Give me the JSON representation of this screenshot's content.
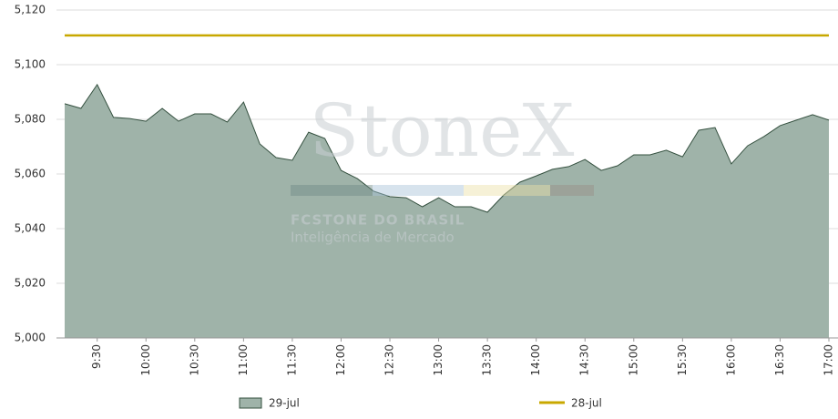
{
  "chart_data": {
    "type": "line",
    "watermark": {
      "brand": "StoneX",
      "line1": "FCSTONE DO BRASIL",
      "line2": "Inteligência de Mercado"
    },
    "categories": [
      null,
      null,
      "9:30",
      null,
      null,
      "10:00",
      null,
      null,
      "10:30",
      null,
      null,
      "11:00",
      null,
      null,
      "11:30",
      null,
      null,
      "12:00",
      null,
      null,
      "12:30",
      null,
      null,
      "13:00",
      null,
      null,
      "13:30",
      null,
      null,
      "14:00",
      null,
      null,
      "14:30",
      null,
      null,
      "15:00",
      null,
      null,
      "15:30",
      null,
      null,
      "16:00",
      null,
      null,
      "16:30",
      null,
      null,
      "17:00"
    ],
    "series": [
      {
        "name": "29-jul",
        "type": "area",
        "color": "#9fb3a9",
        "edge_color": "#34503f",
        "values": [
          5085.7,
          5084,
          5092.7,
          5080.7,
          5080.3,
          5079.3,
          5084,
          5079.3,
          5082,
          5082,
          5079,
          5086.3,
          5071,
          5066,
          5065,
          5075.3,
          5073,
          5061.3,
          5058.3,
          5053.7,
          5051.7,
          5051.3,
          5048,
          5051.3,
          5048,
          5048,
          5046,
          5052.3,
          5057,
          5059.3,
          5061.7,
          5062.7,
          5065.3,
          5061.3,
          5063,
          5067,
          5067,
          5068.7,
          5066.3,
          5076,
          5077,
          5063.7,
          5070.3,
          5073.7,
          5077.7,
          5079.7,
          5081.7,
          5079.7
        ]
      },
      {
        "name": "28-jul",
        "type": "line",
        "color": "#c8a800",
        "values": [
          5110.7,
          5110.7,
          5110.7,
          5110.7,
          5110.7,
          5110.7,
          5110.7,
          5110.7,
          5110.7,
          5110.7,
          5110.7,
          5110.7,
          5110.7,
          5110.7,
          5110.7,
          5110.7,
          5110.7,
          5110.7,
          5110.7,
          5110.7,
          5110.7,
          5110.7,
          5110.7,
          5110.7,
          5110.7,
          5110.7,
          5110.7,
          5110.7,
          5110.7,
          5110.7,
          5110.7,
          5110.7,
          5110.7,
          5110.7,
          5110.7,
          5110.7,
          5110.7,
          5110.7,
          5110.7,
          5110.7,
          5110.7,
          5110.7,
          5110.7,
          5110.7,
          5110.7,
          5110.7,
          5110.7,
          5110.7
        ]
      }
    ],
    "ylim": [
      5000,
      5120
    ],
    "yticks": [
      {
        "value": 5000,
        "label": "5,000"
      },
      {
        "value": 5020,
        "label": "5,020"
      },
      {
        "value": 5040,
        "label": "5,040"
      },
      {
        "value": 5060,
        "label": "5,060"
      },
      {
        "value": 5080,
        "label": "5,080"
      },
      {
        "value": 5100,
        "label": "5,100"
      },
      {
        "value": 5120,
        "label": "5,120"
      }
    ],
    "grid": true,
    "legend": "bottom"
  }
}
